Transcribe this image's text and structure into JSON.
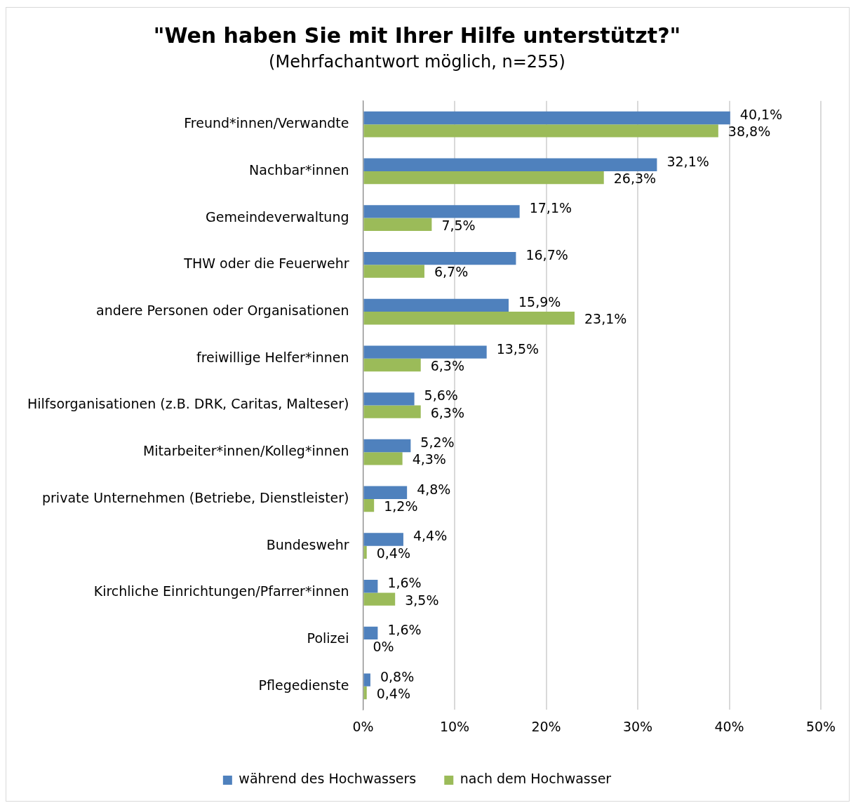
{
  "chart_data": {
    "type": "bar",
    "orientation": "horizontal",
    "title": "\"Wen haben Sie mit Ihrer Hilfe unterstützt?\"",
    "subtitle": "(Mehrfachantwort möglich, n=255)",
    "categories": [
      "Freund*innen/Verwandte",
      "Nachbar*innen",
      "Gemeindeverwaltung",
      "THW oder die Feuerwehr",
      "andere Personen oder Organisationen",
      "freiwillige Helfer*innen",
      "Hilfsorganisationen (z.B. DRK, Caritas, Malteser)",
      "Mitarbeiter*innen/Kolleg*innen",
      "private Unternehmen (Betriebe, Dienstleister)",
      "Bundeswehr",
      "Kirchliche Einrichtungen/Pfarrer*innen",
      "Polizei",
      "Pflegedienste"
    ],
    "series": [
      {
        "name": "während des Hochwassers",
        "color": "#4f81bd",
        "values": [
          40.1,
          32.1,
          17.1,
          16.7,
          15.9,
          13.5,
          5.6,
          5.2,
          4.8,
          4.4,
          1.6,
          1.6,
          0.8
        ],
        "value_labels": [
          "40,1%",
          "32,1%",
          "17,1%",
          "16,7%",
          "15,9%",
          "13,5%",
          "5,6%",
          "5,2%",
          "4,8%",
          "4,4%",
          "1,6%",
          "1,6%",
          "0,8%"
        ]
      },
      {
        "name": "nach dem Hochwasser",
        "color": "#9bbb59",
        "values": [
          38.8,
          26.3,
          7.5,
          6.7,
          23.1,
          6.3,
          6.3,
          4.3,
          1.2,
          0.4,
          3.5,
          0,
          0.4
        ],
        "value_labels": [
          "38,8%",
          "26,3%",
          "7,5%",
          "6,7%",
          "23,1%",
          "6,3%",
          "6,3%",
          "4,3%",
          "1,2%",
          "0,4%",
          "3,5%",
          "0%",
          "0,4%"
        ]
      }
    ],
    "xlim": [
      0,
      50
    ],
    "xticks": [
      {
        "value": 0,
        "label": "0%"
      },
      {
        "value": 10,
        "label": "10%"
      },
      {
        "value": 20,
        "label": "20%"
      },
      {
        "value": 30,
        "label": "30%"
      },
      {
        "value": 40,
        "label": "40%"
      },
      {
        "value": 50,
        "label": "50%"
      }
    ],
    "grid": "x",
    "legend": "bottom"
  }
}
